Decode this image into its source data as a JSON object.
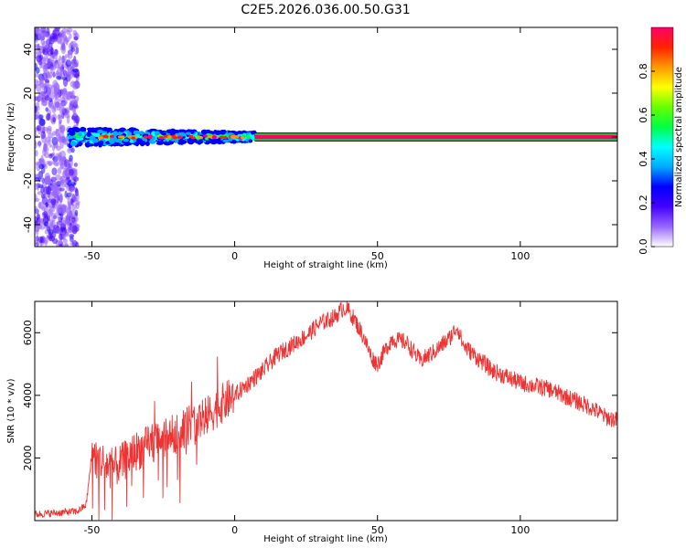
{
  "chart_data": [
    {
      "type": "heatmap",
      "title": "C2E5.2026.036.00.50.G31",
      "xlabel": "Height of straight line (km)",
      "ylabel": "Frequency (Hz)",
      "xlim": [
        -70,
        134
      ],
      "ylim": [
        -50,
        50
      ],
      "xticks": [
        -50,
        0,
        50,
        100
      ],
      "yticks": [
        -40,
        -20,
        0,
        20,
        40
      ],
      "grid": false,
      "colorbar": {
        "label": "Normalized spectral amplitude",
        "range": [
          0,
          1
        ],
        "ticks": [
          0.0,
          0.2,
          0.4,
          0.6,
          0.8
        ],
        "colors": [
          "#ffffff",
          "#9966ff",
          "#4400ff",
          "#0000ff",
          "#00aaff",
          "#00ffff",
          "#00ff44",
          "#66ff00",
          "#ffff00",
          "#ff9900",
          "#ff2200",
          "#ff0066"
        ]
      },
      "regions": [
        {
          "x_range": [
            -70,
            -55
          ],
          "freq_range": [
            -50,
            50
          ],
          "amplitude": "0.0-0.2"
        },
        {
          "x_range": [
            -58,
            7
          ],
          "freq_range": [
            -4,
            4
          ],
          "amplitude": "0.2-1.0"
        },
        {
          "x_range": [
            7,
            134
          ],
          "freq_range": [
            -2,
            2
          ],
          "amplitude": "1.0"
        }
      ]
    },
    {
      "type": "line",
      "title": "",
      "xlabel": "Height of straight line (km)",
      "ylabel": "SNR (10 * v/v)",
      "xlim": [
        -70,
        134
      ],
      "ylim": [
        0,
        7000
      ],
      "xticks": [
        -50,
        0,
        50,
        100
      ],
      "yticks": [
        2000,
        4000,
        6000
      ],
      "color": "#ee3333",
      "x": [
        -70,
        -65,
        -60,
        -55,
        -52,
        -50,
        -48,
        -45,
        -42,
        -40,
        -35,
        -30,
        -25,
        -20,
        -17,
        -15,
        -10,
        -5,
        0,
        5,
        10,
        15,
        20,
        25,
        30,
        35,
        38,
        40,
        42,
        45,
        48,
        50,
        55,
        60,
        65,
        70,
        75,
        78,
        80,
        85,
        90,
        95,
        100,
        105,
        110,
        115,
        120,
        125,
        130,
        134
      ],
      "y": [
        200,
        230,
        260,
        300,
        500,
        2100,
        2000,
        1800,
        1700,
        1800,
        2200,
        2400,
        2600,
        2800,
        3000,
        3100,
        3300,
        3700,
        4000,
        4400,
        4800,
        5300,
        5600,
        5900,
        6300,
        6500,
        6800,
        6700,
        6400,
        5900,
        5200,
        5000,
        5800,
        5700,
        5100,
        5400,
        5800,
        6200,
        5600,
        5200,
        4800,
        4600,
        4400,
        4300,
        4200,
        4000,
        3800,
        3600,
        3300,
        3200
      ]
    }
  ]
}
